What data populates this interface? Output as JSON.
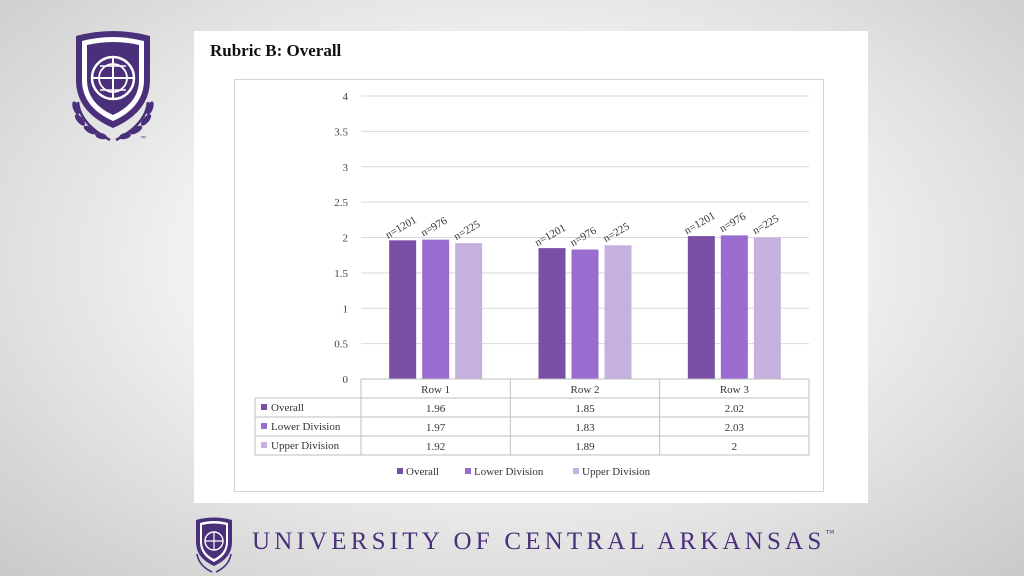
{
  "colors": {
    "overall": "#7a4fa6",
    "lower": "#9b6cd0",
    "upper": "#c5b0e0",
    "brand": "#4a2f7a"
  },
  "card": {
    "title": "Rubric B: Overall"
  },
  "footer": {
    "university_name": "UNIVERSITY OF CENTRAL ARKANSAS",
    "tm": "™"
  },
  "logo": {
    "tm": "™"
  },
  "chart_data": {
    "type": "bar",
    "title": "Rubric B: Overall",
    "categories": [
      "Row 1",
      "Row 2",
      "Row 3"
    ],
    "series": [
      {
        "name": "Overall",
        "values": [
          1.96,
          1.85,
          2.02
        ],
        "labels": [
          "1.96",
          "1.85",
          "2.02"
        ],
        "n": [
          "n=1201",
          "n=1201",
          "n=1201"
        ]
      },
      {
        "name": "Lower Division",
        "values": [
          1.97,
          1.83,
          2.03
        ],
        "labels": [
          "1.97",
          "1.83",
          "2.03"
        ],
        "n": [
          "n=976",
          "n=976",
          "n=976"
        ]
      },
      {
        "name": "Upper Division",
        "values": [
          1.92,
          1.89,
          2
        ],
        "labels": [
          "1.92",
          "1.89",
          "2"
        ],
        "n": [
          "n=225",
          "n=225",
          "n=225"
        ]
      }
    ],
    "yticks": [
      "0",
      "0.5",
      "1",
      "1.5",
      "2",
      "2.5",
      "3",
      "3.5",
      "4"
    ],
    "ylim": [
      0,
      4
    ],
    "grid": true,
    "legend": "bottom",
    "data_table": true
  }
}
